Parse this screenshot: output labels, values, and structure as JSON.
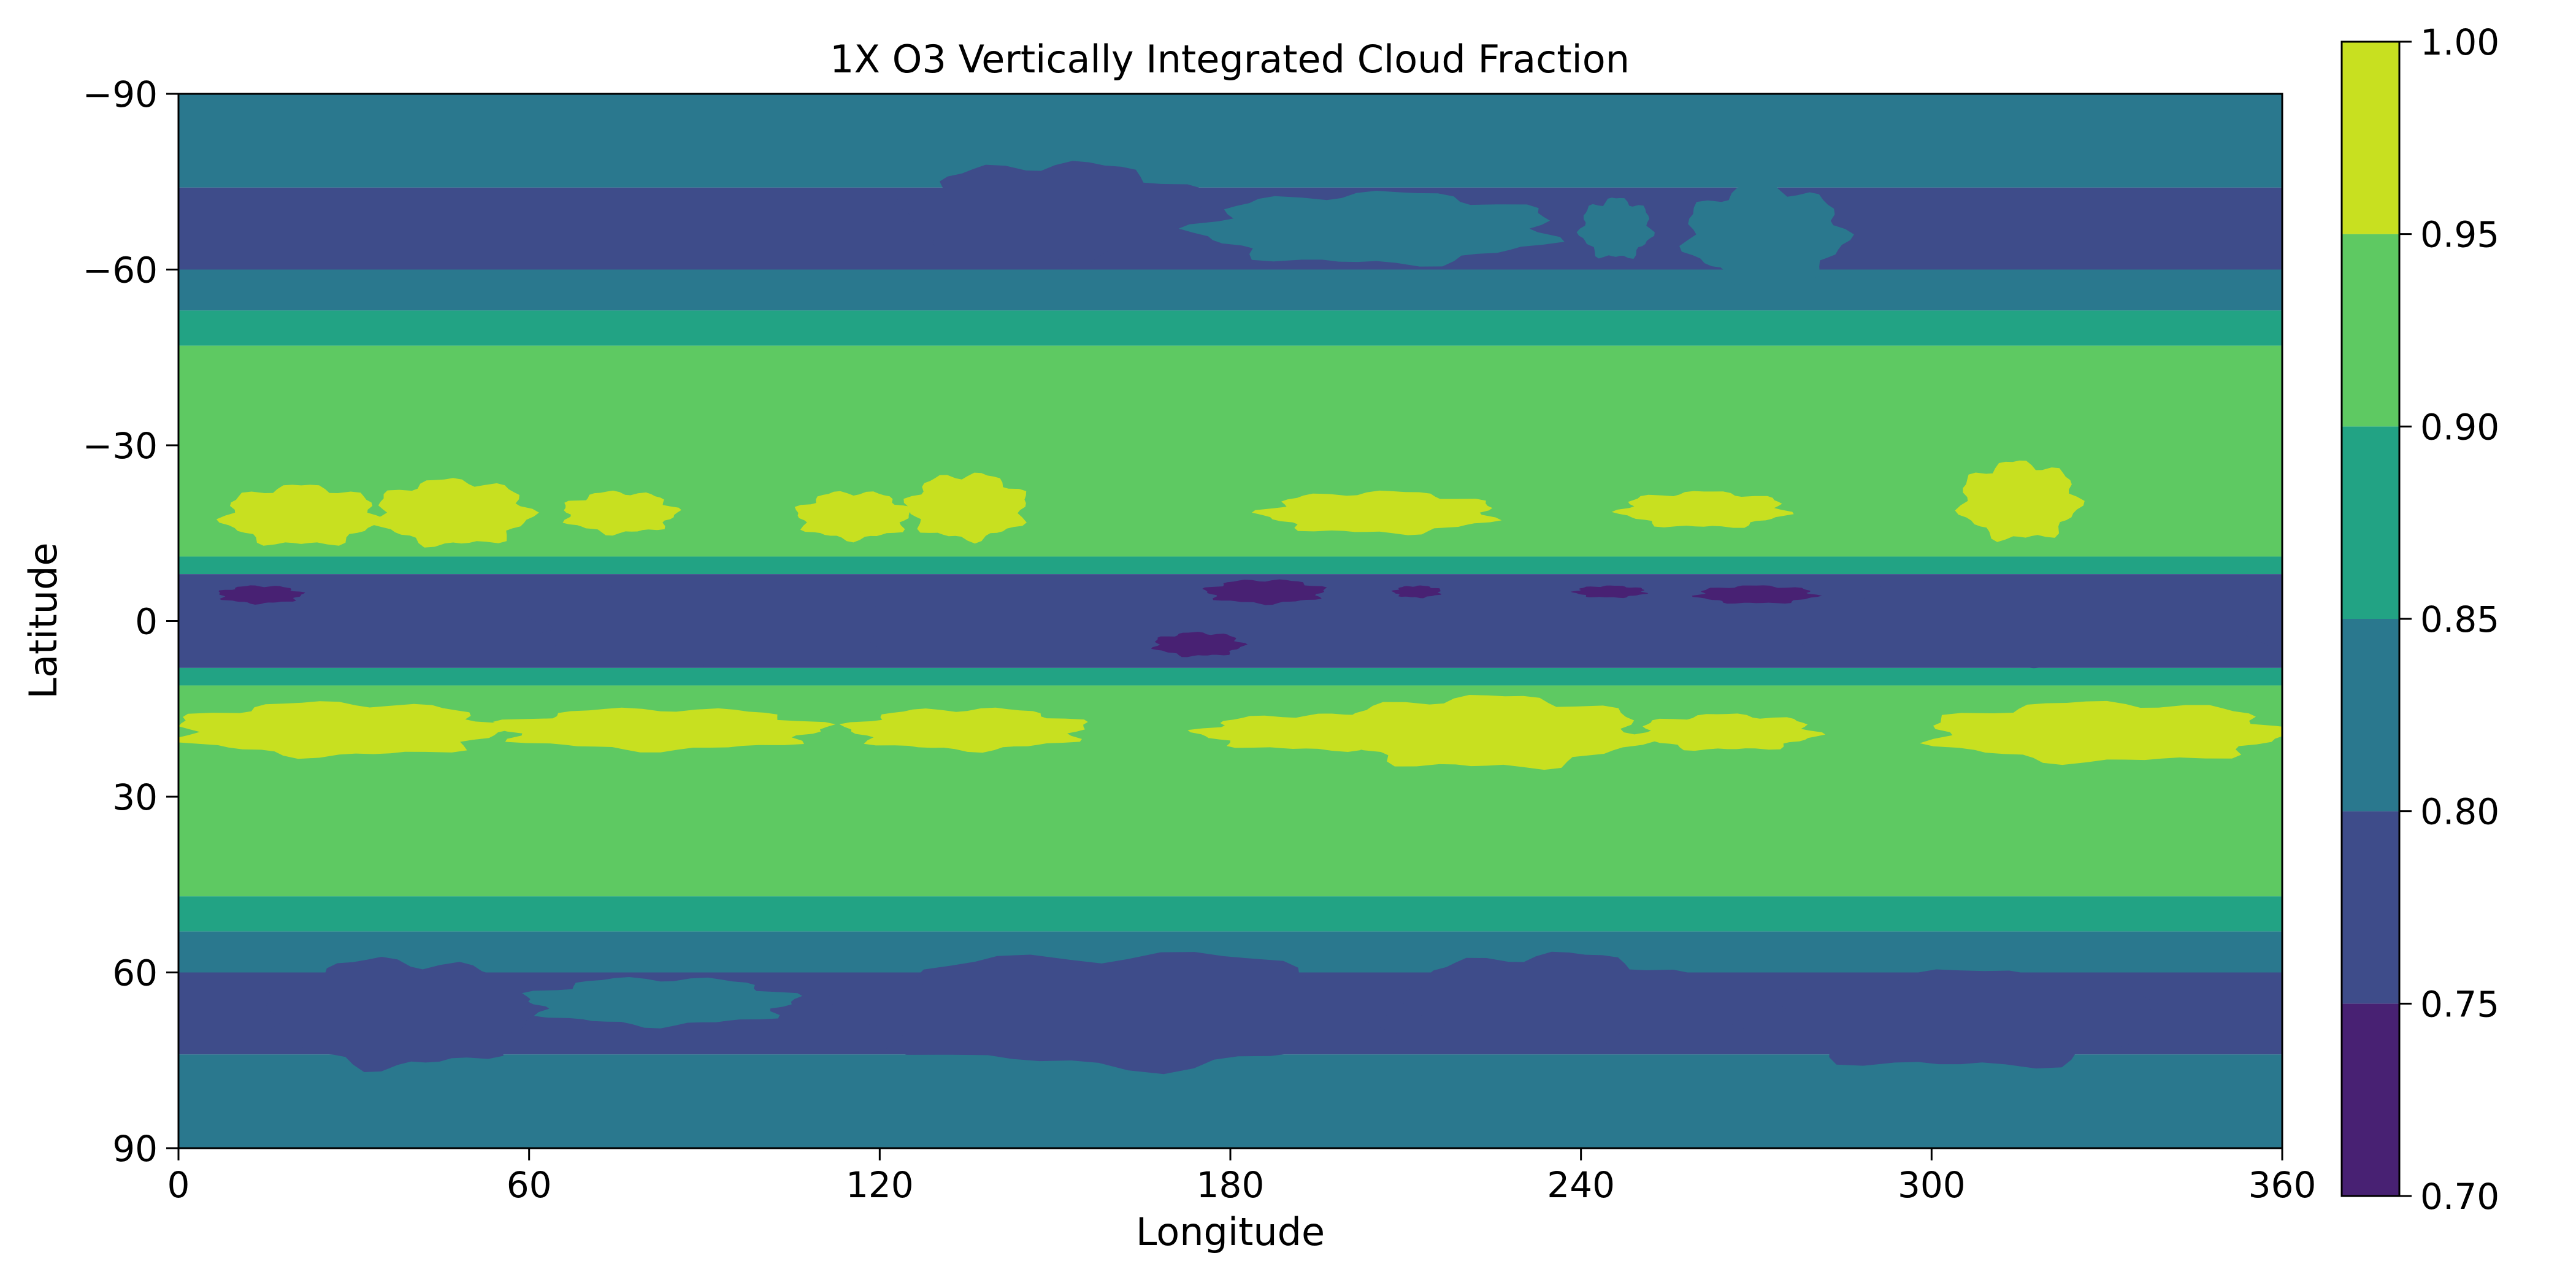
{
  "chart_data": {
    "type": "contourf",
    "title": "1X O3 Vertically Integrated Cloud Fraction",
    "xlabel": "Longitude",
    "ylabel": "Latitude",
    "xlim": [
      0,
      360
    ],
    "ylim": [
      -90,
      90
    ],
    "y_inverted": true,
    "xticks": [
      "0",
      "60",
      "120",
      "180",
      "240",
      "300",
      "360"
    ],
    "yticks": [
      "−90",
      "−60",
      "−30",
      "0",
      "30",
      "60",
      "90"
    ],
    "grid": false,
    "colorbar": {
      "levels": [
        0.7,
        0.75,
        0.8,
        0.85,
        0.9,
        0.95,
        1.0
      ],
      "tick_labels": [
        "0.70",
        "0.75",
        "0.80",
        "0.85",
        "0.90",
        "0.95",
        "1.00"
      ],
      "colors": [
        "#482173",
        "#3e4c8a",
        "#2a788e",
        "#22a384",
        "#5ec962",
        "#c8e020"
      ]
    },
    "bands": [
      {
        "lat_min": -90,
        "lat_max": -74,
        "level": 2
      },
      {
        "lat_min": -74,
        "lat_max": -60,
        "level": 1
      },
      {
        "lat_min": -60,
        "lat_max": -53,
        "level": 2
      },
      {
        "lat_min": -53,
        "lat_max": -47,
        "level": 3
      },
      {
        "lat_min": -47,
        "lat_max": -11,
        "level": 4
      },
      {
        "lat_min": -11,
        "lat_max": -8,
        "level": 3
      },
      {
        "lat_min": -8,
        "lat_max": 8,
        "level": 1
      },
      {
        "lat_min": 8,
        "lat_max": 11,
        "level": 3
      },
      {
        "lat_min": 11,
        "lat_max": 47,
        "level": 4
      },
      {
        "lat_min": 47,
        "lat_max": 53,
        "level": 3
      },
      {
        "lat_min": 53,
        "lat_max": 60,
        "level": 2
      },
      {
        "lat_min": 60,
        "lat_max": 74,
        "level": 1
      },
      {
        "lat_min": 74,
        "lat_max": 90,
        "level": 2
      }
    ],
    "patches": [
      {
        "lon": [
          8,
          34
        ],
        "lat": [
          -23,
          -13
        ],
        "level": 5
      },
      {
        "lon": [
          34,
          60
        ],
        "lat": [
          -24,
          -13
        ],
        "level": 5
      },
      {
        "lon": [
          66,
          85
        ],
        "lat": [
          -22,
          -15
        ],
        "level": 5
      },
      {
        "lon": [
          106,
          125
        ],
        "lat": [
          -22,
          -14
        ],
        "level": 5
      },
      {
        "lon": [
          125,
          145
        ],
        "lat": [
          -25,
          -14
        ],
        "level": 5
      },
      {
        "lon": [
          186,
          225
        ],
        "lat": [
          -22,
          -15
        ],
        "level": 5
      },
      {
        "lon": [
          247,
          275
        ],
        "lat": [
          -22,
          -16
        ],
        "level": 5
      },
      {
        "lon": [
          305,
          325
        ],
        "lat": [
          -27,
          -14
        ],
        "level": 5
      },
      {
        "lon": [
          0,
          55
        ],
        "lat": [
          14,
          23
        ],
        "level": 5
      },
      {
        "lon": [
          55,
          110
        ],
        "lat": [
          15,
          22
        ],
        "level": 5
      },
      {
        "lon": [
          115,
          155
        ],
        "lat": [
          15,
          22
        ],
        "level": 5
      },
      {
        "lon": [
          175,
          215
        ],
        "lat": [
          16,
          22
        ],
        "level": 5
      },
      {
        "lon": [
          198,
          250
        ],
        "lat": [
          13,
          25
        ],
        "level": 5
      },
      {
        "lon": [
          250,
          280
        ],
        "lat": [
          16,
          22
        ],
        "level": 5
      },
      {
        "lon": [
          300,
          360
        ],
        "lat": [
          14,
          24
        ],
        "level": 5
      },
      {
        "lon": [
          7,
          21
        ],
        "lat": [
          -6,
          -3
        ],
        "level": 0
      },
      {
        "lon": [
          176,
          196
        ],
        "lat": [
          -7,
          -3
        ],
        "level": 0
      },
      {
        "lon": [
          208,
          216
        ],
        "lat": [
          -6,
          -4
        ],
        "level": 0
      },
      {
        "lon": [
          239,
          251
        ],
        "lat": [
          -6,
          -4
        ],
        "level": 0
      },
      {
        "lon": [
          260,
          280
        ],
        "lat": [
          -6,
          -3
        ],
        "level": 0
      },
      {
        "lon": [
          167,
          182
        ],
        "lat": [
          2,
          6
        ],
        "level": 0
      },
      {
        "lon": [
          60,
          125
        ],
        "lat": [
          -7,
          7
        ],
        "level": 1
      },
      {
        "lon": [
          275,
          360
        ],
        "lat": [
          -7,
          7
        ],
        "level": 1
      },
      {
        "lon": [
          125,
          175
        ],
        "lat": [
          -78,
          -62
        ],
        "level": 1
      },
      {
        "lon": [
          175,
          235
        ],
        "lat": [
          -73,
          -61
        ],
        "level": 2
      },
      {
        "lon": [
          240,
          252
        ],
        "lat": [
          -72,
          -62
        ],
        "level": 2
      },
      {
        "lon": [
          258,
          285
        ],
        "lat": [
          -74,
          -58
        ],
        "level": 2
      },
      {
        "lon": [
          15,
          60
        ],
        "lat": [
          58,
          76
        ],
        "level": 1
      },
      {
        "lon": [
          60,
          105
        ],
        "lat": [
          61,
          69
        ],
        "level": 2
      },
      {
        "lon": [
          115,
          210
        ],
        "lat": [
          57,
          76
        ],
        "level": 1
      },
      {
        "lon": [
          210,
          260
        ],
        "lat": [
          57,
          72
        ],
        "level": 1
      },
      {
        "lon": [
          270,
          340
        ],
        "lat": [
          60,
          76
        ],
        "level": 1
      }
    ]
  }
}
